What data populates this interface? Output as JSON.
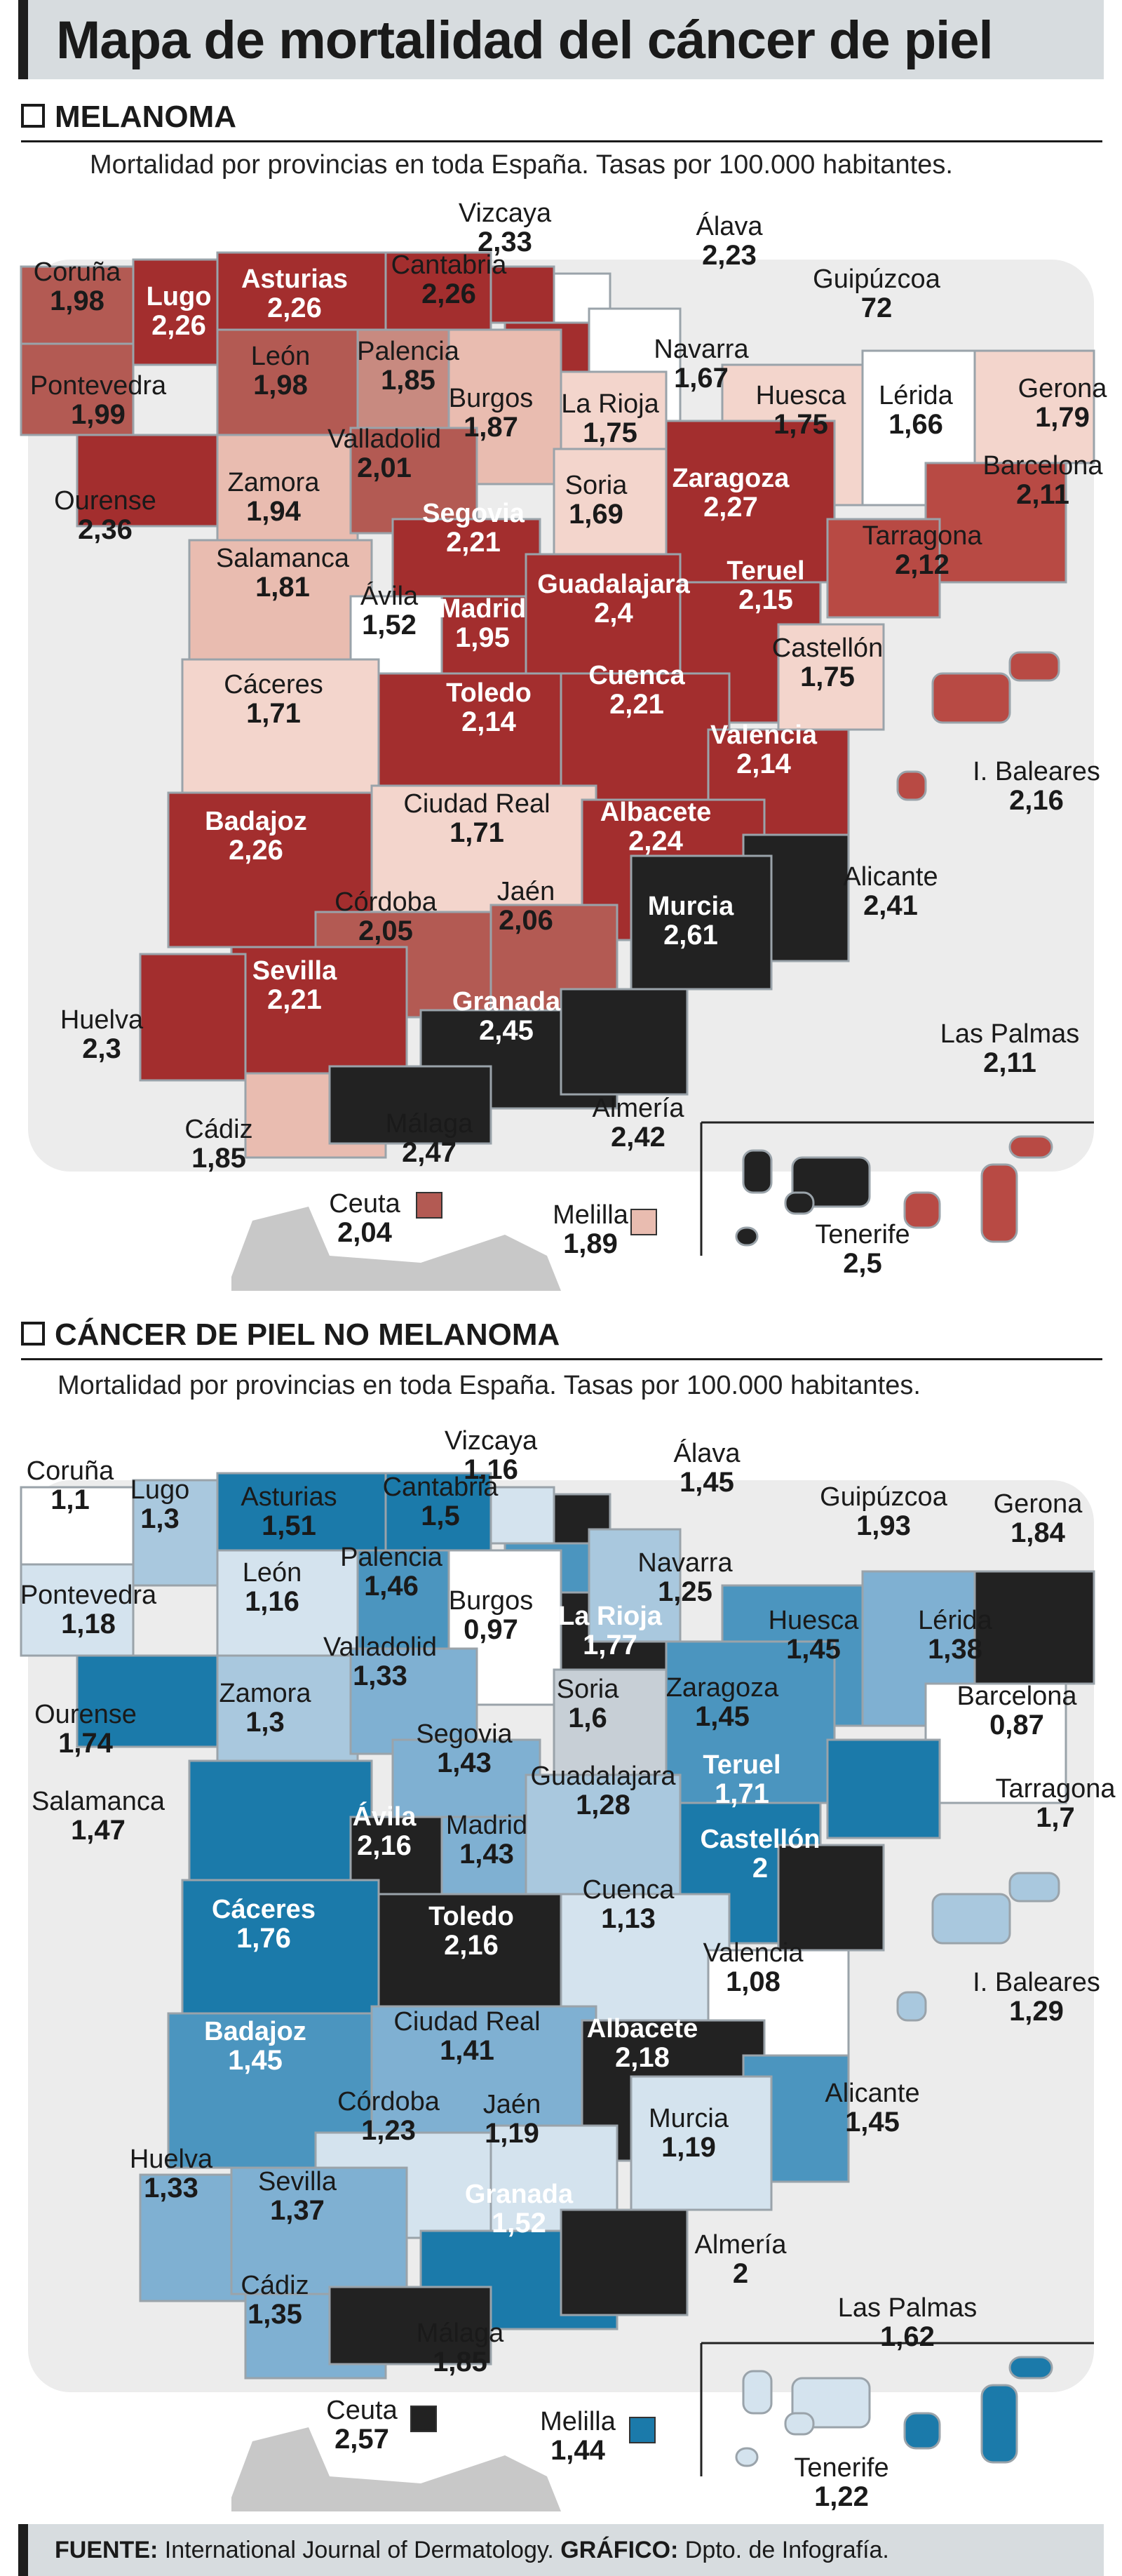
{
  "title": "Mapa de mortalidad del cáncer de piel",
  "melanoma": {
    "section_title": "MELANOMA",
    "subtitle": "Mortalidad por provincias en toda España. Tasas por 100.000 habitantes.",
    "regions": [
      {
        "name": "Coruña",
        "value": "1,98",
        "color": "#b35a53"
      },
      {
        "name": "Lugo",
        "value": "2,26",
        "color": "#a32e2e"
      },
      {
        "name": "Asturias",
        "value": "2,26",
        "color": "#a32e2e"
      },
      {
        "name": "Cantabria",
        "value": "2,26",
        "color": "#a32e2e"
      },
      {
        "name": "Vizcaya",
        "value": "2,33",
        "color": "#a32e2e"
      },
      {
        "name": "Álava",
        "value": "2,23",
        "color": "#a32e2e"
      },
      {
        "name": "Guipúzcoa",
        "value": "72",
        "color": "#ffffff"
      },
      {
        "name": "Navarra",
        "value": "1,67",
        "color": "#ffffff"
      },
      {
        "name": "Pontevedra",
        "value": "1,99",
        "color": "#b35a53"
      },
      {
        "name": "León",
        "value": "1,98",
        "color": "#b35a53"
      },
      {
        "name": "Palencia",
        "value": "1,85",
        "color": "#c88a80"
      },
      {
        "name": "Burgos",
        "value": "1,87",
        "color": "#e9bcb0"
      },
      {
        "name": "La Rioja",
        "value": "1,75",
        "color": "#f3d5cc"
      },
      {
        "name": "Huesca",
        "value": "1,75",
        "color": "#f3d5cc"
      },
      {
        "name": "Lérida",
        "value": "1,66",
        "color": "#ffffff"
      },
      {
        "name": "Gerona",
        "value": "1,79",
        "color": "#f3d5cc"
      },
      {
        "name": "Ourense",
        "value": "2,36",
        "color": "#a32e2e"
      },
      {
        "name": "Zamora",
        "value": "1,94",
        "color": "#e9bcb0"
      },
      {
        "name": "Valladolid",
        "value": "2,01",
        "color": "#b35a53"
      },
      {
        "name": "Soria",
        "value": "1,69",
        "color": "#f3d5cc"
      },
      {
        "name": "Zaragoza",
        "value": "2,27",
        "color": "#a32e2e"
      },
      {
        "name": "Barcelona",
        "value": "2,11",
        "color": "#b84a44"
      },
      {
        "name": "Segovia",
        "value": "2,21",
        "color": "#a32e2e"
      },
      {
        "name": "Salamanca",
        "value": "1,81",
        "color": "#e9bcb0"
      },
      {
        "name": "Ávila",
        "value": "1,52",
        "color": "#ffffff"
      },
      {
        "name": "Madrid",
        "value": "1,95",
        "color": "#a32e2e"
      },
      {
        "name": "Guadalajara",
        "value": "2,4",
        "color": "#a32e2e"
      },
      {
        "name": "Teruel",
        "value": "2,15",
        "color": "#a32e2e"
      },
      {
        "name": "Tarragona",
        "value": "2,12",
        "color": "#b84a44"
      },
      {
        "name": "Castellón",
        "value": "1,75",
        "color": "#f3d5cc"
      },
      {
        "name": "Cáceres",
        "value": "1,71",
        "color": "#f3d5cc"
      },
      {
        "name": "Toledo",
        "value": "2,14",
        "color": "#a32e2e"
      },
      {
        "name": "Cuenca",
        "value": "2,21",
        "color": "#a32e2e"
      },
      {
        "name": "Valencia",
        "value": "2,14",
        "color": "#a32e2e"
      },
      {
        "name": "I. Baleares",
        "value": "2,16",
        "color": "#b84a44"
      },
      {
        "name": "Badajoz",
        "value": "2,26",
        "color": "#a32e2e"
      },
      {
        "name": "Ciudad Real",
        "value": "1,71",
        "color": "#f3d5cc"
      },
      {
        "name": "Albacete",
        "value": "2,24",
        "color": "#a32e2e"
      },
      {
        "name": "Alicante",
        "value": "2,41",
        "color": "#222222"
      },
      {
        "name": "Córdoba",
        "value": "2,05",
        "color": "#b35a53"
      },
      {
        "name": "Jaén",
        "value": "2,06",
        "color": "#b35a53"
      },
      {
        "name": "Murcia",
        "value": "2,61",
        "color": "#222222"
      },
      {
        "name": "Sevilla",
        "value": "2,21",
        "color": "#a32e2e"
      },
      {
        "name": "Huelva",
        "value": "2,3",
        "color": "#a32e2e"
      },
      {
        "name": "Granada",
        "value": "2,45",
        "color": "#222222"
      },
      {
        "name": "Cádiz",
        "value": "1,85",
        "color": "#e9bcb0"
      },
      {
        "name": "Málaga",
        "value": "2,47",
        "color": "#222222"
      },
      {
        "name": "Almería",
        "value": "2,42",
        "color": "#222222"
      },
      {
        "name": "Las Palmas",
        "value": "2,11",
        "color": "#b84a44"
      },
      {
        "name": "Ceuta",
        "value": "2,04",
        "color": "#b35a53"
      },
      {
        "name": "Melilla",
        "value": "1,89",
        "color": "#e9bcb0"
      },
      {
        "name": "Tenerife",
        "value": "2,5",
        "color": "#222222"
      }
    ]
  },
  "no_melanoma": {
    "section_title": "CÁNCER DE PIEL NO MELANOMA",
    "subtitle": "Mortalidad por provincias en toda España. Tasas por 100.000 habitantes.",
    "regions": [
      {
        "name": "Coruña",
        "value": "1,1",
        "color": "#ffffff"
      },
      {
        "name": "Lugo",
        "value": "1,3",
        "color": "#a9c8de"
      },
      {
        "name": "Asturias",
        "value": "1,51",
        "color": "#1b7aaa"
      },
      {
        "name": "Cantabria",
        "value": "1,5",
        "color": "#1b7aaa"
      },
      {
        "name": "Vizcaya",
        "value": "1,16",
        "color": "#d4e3ee"
      },
      {
        "name": "Álava",
        "value": "1,45",
        "color": "#4b95bf"
      },
      {
        "name": "Guipúzcoa",
        "value": "1,93",
        "color": "#222222"
      },
      {
        "name": "Gerona",
        "value": "1,84",
        "color": "#222222"
      },
      {
        "name": "Pontevedra",
        "value": "1,18",
        "color": "#d4e3ee"
      },
      {
        "name": "León",
        "value": "1,16",
        "color": "#d4e3ee"
      },
      {
        "name": "Palencia",
        "value": "1,46",
        "color": "#4b95bf"
      },
      {
        "name": "Burgos",
        "value": "0,97",
        "color": "#ffffff"
      },
      {
        "name": "La Rioja",
        "value": "1,77",
        "color": "#222222"
      },
      {
        "name": "Navarra",
        "value": "1,25",
        "color": "#a9c8de"
      },
      {
        "name": "Huesca",
        "value": "1,45",
        "color": "#4b95bf"
      },
      {
        "name": "Lérida",
        "value": "1,38",
        "color": "#7fb0d2"
      },
      {
        "name": "Ourense",
        "value": "1,74",
        "color": "#1b7aaa"
      },
      {
        "name": "Zamora",
        "value": "1,3",
        "color": "#a9c8de"
      },
      {
        "name": "Valladolid",
        "value": "1,33",
        "color": "#7fb0d2"
      },
      {
        "name": "Soria",
        "value": "1,6",
        "color": "#c7cfd6"
      },
      {
        "name": "Zaragoza",
        "value": "1,45",
        "color": "#4b95bf"
      },
      {
        "name": "Barcelona",
        "value": "0,87",
        "color": "#ffffff"
      },
      {
        "name": "Salamanca",
        "value": "1,47",
        "color": "#1b7aaa"
      },
      {
        "name": "Segovia",
        "value": "1,43",
        "color": "#7fb0d2"
      },
      {
        "name": "Guadalajara",
        "value": "1,28",
        "color": "#a9c8de"
      },
      {
        "name": "Teruel",
        "value": "1,71",
        "color": "#1b7aaa"
      },
      {
        "name": "Tarragona",
        "value": "1,7",
        "color": "#1b7aaa"
      },
      {
        "name": "Ávila",
        "value": "2,16",
        "color": "#222222"
      },
      {
        "name": "Madrid",
        "value": "1,43",
        "color": "#7fb0d2"
      },
      {
        "name": "Castellón",
        "value": "2",
        "color": "#222222"
      },
      {
        "name": "Cáceres",
        "value": "1,76",
        "color": "#1b7aaa"
      },
      {
        "name": "Toledo",
        "value": "2,16",
        "color": "#222222"
      },
      {
        "name": "Cuenca",
        "value": "1,13",
        "color": "#d4e3ee"
      },
      {
        "name": "Valencia",
        "value": "1,08",
        "color": "#ffffff"
      },
      {
        "name": "I. Baleares",
        "value": "1,29",
        "color": "#a9c8de"
      },
      {
        "name": "Badajoz",
        "value": "1,45",
        "color": "#4b95bf"
      },
      {
        "name": "Ciudad Real",
        "value": "1,41",
        "color": "#7fb0d2"
      },
      {
        "name": "Albacete",
        "value": "2,18",
        "color": "#222222"
      },
      {
        "name": "Alicante",
        "value": "1,45",
        "color": "#4b95bf"
      },
      {
        "name": "Córdoba",
        "value": "1,23",
        "color": "#d4e3ee"
      },
      {
        "name": "Jaén",
        "value": "1,19",
        "color": "#d4e3ee"
      },
      {
        "name": "Murcia",
        "value": "1,19",
        "color": "#d4e3ee"
      },
      {
        "name": "Huelva",
        "value": "1,33",
        "color": "#7fb0d2"
      },
      {
        "name": "Sevilla",
        "value": "1,37",
        "color": "#7fb0d2"
      },
      {
        "name": "Granada",
        "value": "1,52",
        "color": "#1b7aaa"
      },
      {
        "name": "Almería",
        "value": "2",
        "color": "#222222"
      },
      {
        "name": "Cádiz",
        "value": "1,35",
        "color": "#7fb0d2"
      },
      {
        "name": "Málaga",
        "value": "1,85",
        "color": "#222222"
      },
      {
        "name": "Las Palmas",
        "value": "1,62",
        "color": "#1b7aaa"
      },
      {
        "name": "Ceuta",
        "value": "2,57",
        "color": "#222222"
      },
      {
        "name": "Melilla",
        "value": "1,44",
        "color": "#1b7aaa"
      },
      {
        "name": "Tenerife",
        "value": "1,22",
        "color": "#d4e3ee"
      }
    ]
  },
  "footer": {
    "source_label": "FUENTE:",
    "source_text": "International Journal of Dermatology.",
    "graphic_label": "GRÁFICO:",
    "graphic_text": "Dpto. de Infografía."
  }
}
